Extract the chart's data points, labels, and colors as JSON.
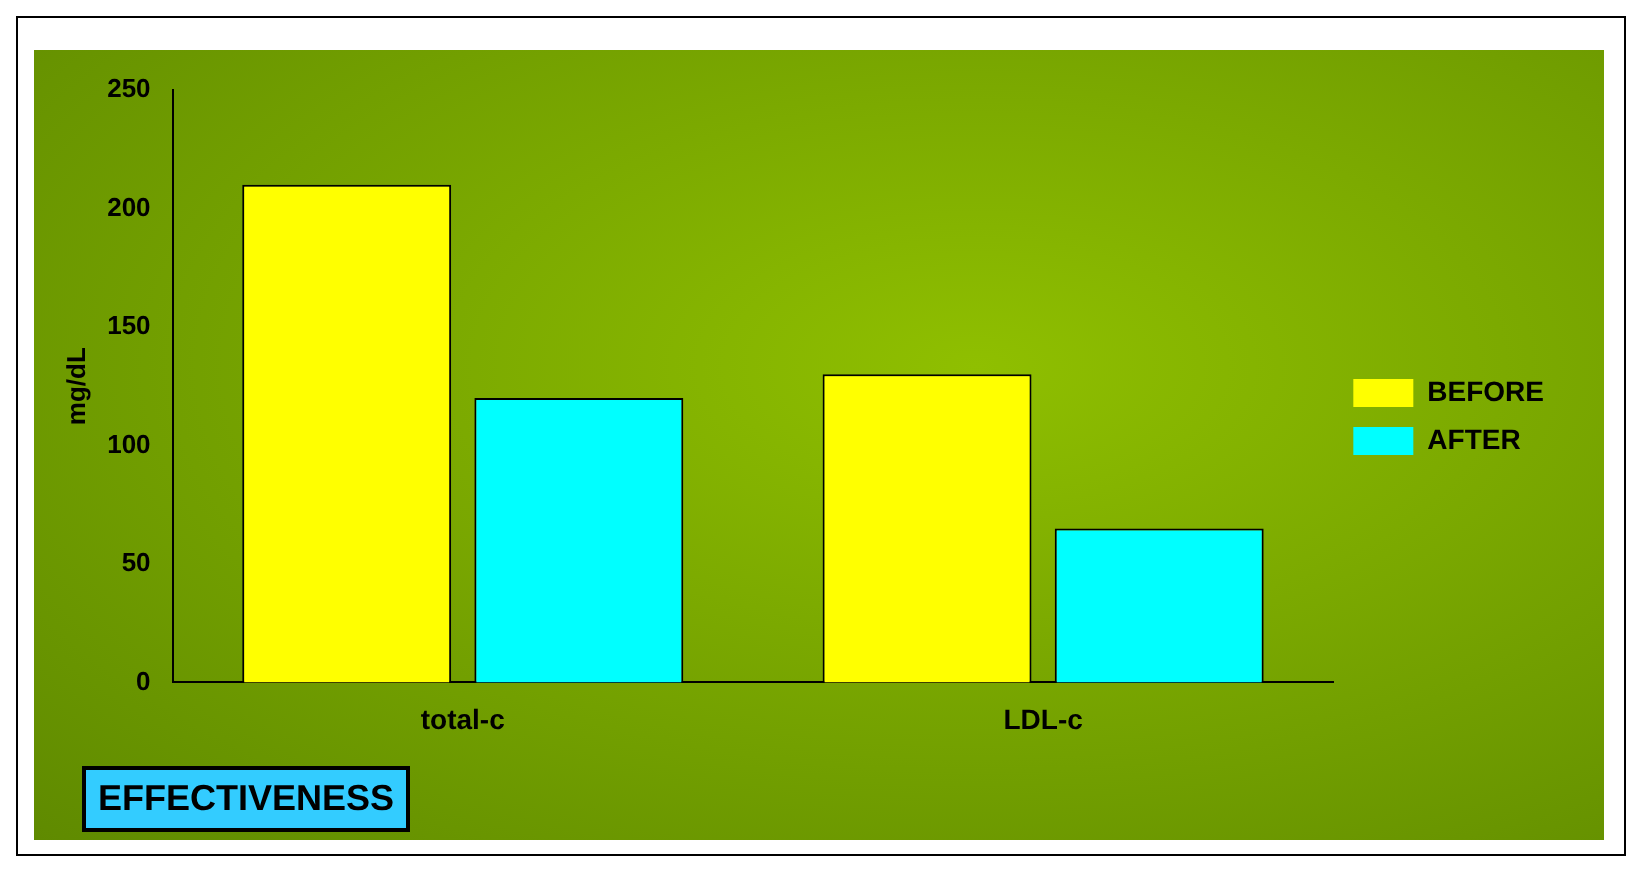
{
  "chart_data": {
    "type": "bar",
    "ylabel": "mg/dL",
    "categories": [
      "total-c",
      "LDL-c"
    ],
    "series": [
      {
        "name": "BEFORE",
        "color": "#ffff00",
        "values": [
          210,
          130
        ]
      },
      {
        "name": "AFTER",
        "color": "#00ffff",
        "values": [
          120,
          65
        ]
      }
    ],
    "ylim": [
      0,
      250
    ],
    "yticks": [
      0,
      50,
      100,
      150,
      200,
      250
    ],
    "grid": false,
    "legend": "right",
    "annotations": [
      "EFFECTIVENESS"
    ]
  }
}
